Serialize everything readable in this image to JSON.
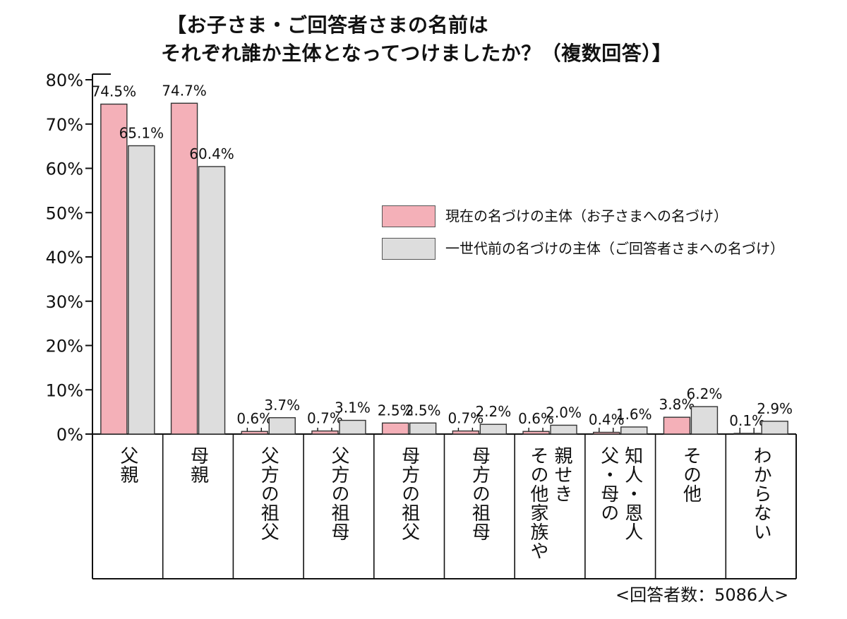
{
  "colors": {
    "current": "#f4b0b8",
    "previous": "#dddddd",
    "stroke": "#333333"
  },
  "title": {
    "line1": "【お子さま・ご回答者さまの名前は",
    "line2": "それぞれ誰か主体となってつけましたか？（複数回答）】"
  },
  "footnote": "<回答者数：5086人>",
  "chart_data": {
    "type": "bar",
    "title": "【お子さま・ご回答者さまの名前は それぞれ誰か主体となってつけましたか？（複数回答）】",
    "xlabel": "",
    "ylabel": "",
    "ylim": [
      0,
      80
    ],
    "yticks": [
      "80%",
      "70%",
      "60%",
      "50%",
      "40%",
      "30%",
      "20%",
      "10%",
      "0%"
    ],
    "grid": false,
    "legend_position": "right-center",
    "categories": [
      [
        "父親"
      ],
      [
        "母親"
      ],
      [
        "父方の祖父"
      ],
      [
        "父方の祖母"
      ],
      [
        "母方の祖父"
      ],
      [
        "母方の祖母"
      ],
      [
        "その他家族や",
        "親せき"
      ],
      [
        "父・母の",
        "知人・恩人"
      ],
      [
        "その他"
      ],
      [
        "わからない"
      ]
    ],
    "series": [
      {
        "name": "現在の名づけの主体（お子さまへの名づけ）",
        "values": [
          74.5,
          74.7,
          0.6,
          0.7,
          2.5,
          0.7,
          0.6,
          0.4,
          3.8,
          0.1
        ],
        "labels": [
          "74.5%",
          "74.7%",
          "0.6%",
          "0.7%",
          "2.5%",
          "0.7%",
          "0.6%",
          "0.4%",
          "3.8%",
          "0.1%"
        ]
      },
      {
        "name": "一世代前の名づけの主体（ご回答者さまへの名づけ）",
        "values": [
          65.1,
          60.4,
          3.7,
          3.1,
          2.5,
          2.2,
          2.0,
          1.6,
          6.2,
          2.9
        ],
        "labels": [
          "65.1%",
          "60.4%",
          "3.7%",
          "3.1%",
          "2.5%",
          "2.2%",
          "2.0%",
          "1.6%",
          "6.2%",
          "2.9%"
        ]
      }
    ]
  }
}
